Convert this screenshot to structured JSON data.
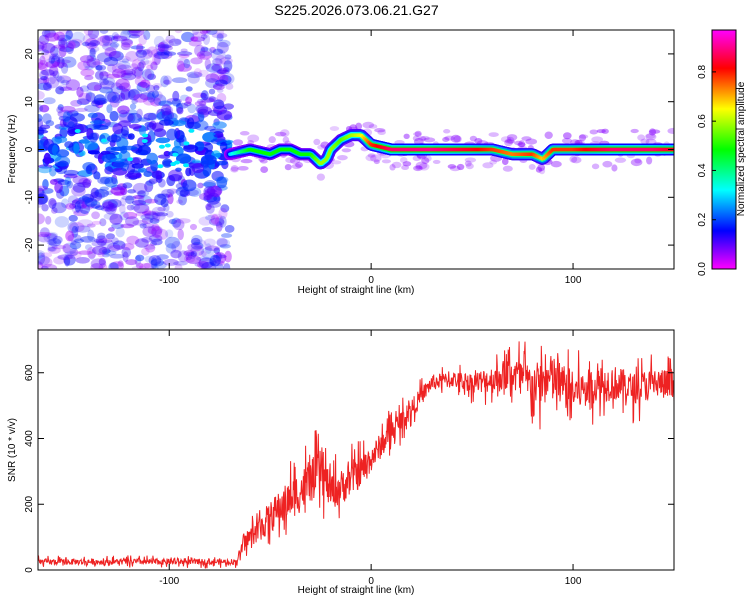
{
  "title": "S225.2026.073.06.21.G27",
  "colors": {
    "snr_line": "#ee2222",
    "axis": "#000000",
    "background": "#ffffff"
  },
  "chart_data": [
    {
      "type": "heatmap",
      "name": "spectrogram",
      "xlabel": "Height of straight line (km)",
      "ylabel": "Frequency (Hz)",
      "xlim": [
        -165,
        150
      ],
      "ylim": [
        -25,
        25
      ],
      "xticks": [
        -100,
        0,
        100
      ],
      "yticks": [
        -20,
        -10,
        0,
        10,
        20
      ],
      "colorbar": {
        "label": "Normalized spectral amplitude",
        "range": [
          0.0,
          0.97
        ],
        "ticks": [
          0.0,
          0.2,
          0.4,
          0.6,
          0.8
        ],
        "colormap": [
          "#ff00ff",
          "#0000ff",
          "#00ffff",
          "#00ff00",
          "#ffff00",
          "#ff0000",
          "#ff00ff"
        ]
      },
      "ridge": {
        "x": [
          -70,
          -60,
          -50,
          -45,
          -40,
          -35,
          -30,
          -25,
          -22,
          -20,
          -15,
          -10,
          -5,
          0,
          10,
          30,
          50,
          60,
          70,
          80,
          85,
          90,
          100,
          120,
          140,
          150
        ],
        "frequency": [
          -1,
          0,
          -1,
          0,
          0,
          -1,
          -1,
          -3,
          -2,
          0,
          2,
          3,
          3,
          1,
          0,
          0,
          0,
          0,
          -1,
          -1,
          -2,
          0,
          0,
          0,
          0,
          0
        ],
        "amplitude": [
          0.3,
          0.5,
          0.5,
          0.5,
          0.5,
          0.5,
          0.5,
          0.6,
          0.6,
          0.6,
          0.55,
          0.6,
          0.65,
          0.8,
          0.9,
          0.92,
          0.85,
          0.8,
          0.75,
          0.8,
          0.7,
          0.8,
          0.8,
          0.9,
          0.9,
          0.85
        ]
      },
      "noise_region_x": [
        -165,
        -70
      ]
    },
    {
      "type": "line",
      "name": "snr",
      "xlabel": "Height of straight line (km)",
      "ylabel": "SNR (10 * v/v)",
      "xlim": [
        -165,
        150
      ],
      "ylim": [
        0,
        730
      ],
      "xticks": [
        -100,
        0,
        100
      ],
      "yticks": [
        0,
        200,
        400,
        600
      ],
      "series": [
        {
          "name": "SNR",
          "x": [
            -165,
            -140,
            -120,
            -100,
            -80,
            -67,
            -62,
            -55,
            -45,
            -35,
            -30,
            -25,
            -20,
            -15,
            -10,
            -5,
            0,
            10,
            20,
            30,
            40,
            50,
            60,
            70,
            80,
            90,
            100,
            110,
            120,
            130,
            140,
            150
          ],
          "y": [
            25,
            25,
            25,
            25,
            25,
            25,
            90,
            130,
            190,
            240,
            270,
            300,
            240,
            250,
            280,
            300,
            340,
            420,
            490,
            570,
            580,
            570,
            580,
            600,
            560,
            580,
            540,
            560,
            570,
            550,
            570,
            560
          ],
          "spread": [
            15,
            15,
            15,
            15,
            15,
            15,
            40,
            70,
            90,
            110,
            110,
            110,
            90,
            90,
            90,
            80,
            70,
            60,
            50,
            40,
            40,
            50,
            70,
            90,
            110,
            130,
            100,
            90,
            90,
            80,
            80,
            80
          ]
        }
      ]
    }
  ]
}
